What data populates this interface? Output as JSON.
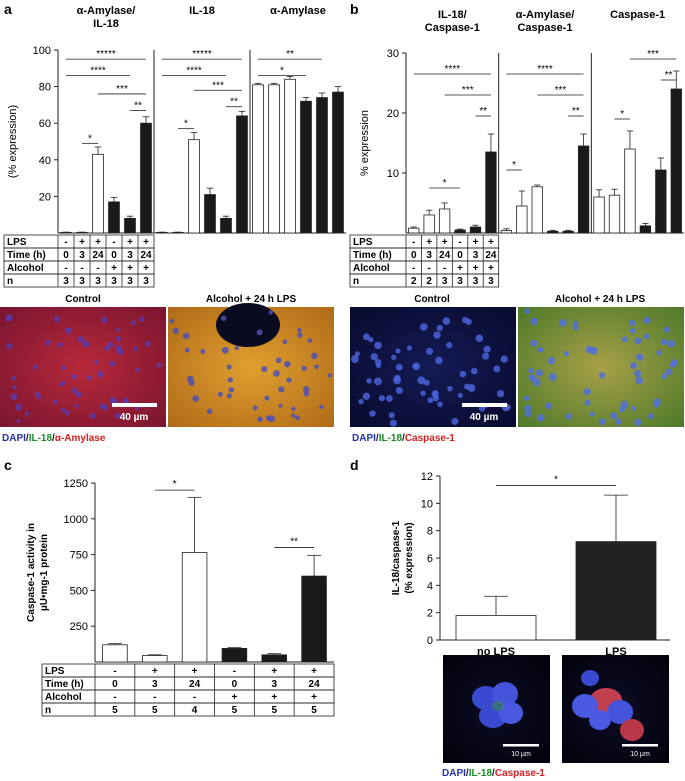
{
  "panels": [
    {
      "letter": "a"
    },
    {
      "letter": "b"
    },
    {
      "letter": "c"
    },
    {
      "letter": "d"
    }
  ],
  "chart_data": [
    {
      "panel": "a",
      "type": "bar",
      "ylabel": "(% expression)",
      "ylim": [
        0,
        100
      ],
      "yticks": [
        "100",
        "80",
        "60",
        "40",
        "20"
      ],
      "groups": [
        {
          "title": [
            "α-Amylase/",
            "IL-18"
          ],
          "values": [
            0.3,
            0.3,
            43,
            17,
            8,
            60
          ],
          "errors": [
            0.2,
            0.2,
            4,
            2.5,
            1.2,
            3.5
          ]
        },
        {
          "title": [
            "IL-18"
          ],
          "values": [
            0.3,
            0.3,
            51,
            21,
            8,
            64
          ],
          "errors": [
            0.2,
            0.2,
            4,
            3.5,
            1.2,
            2.5
          ]
        },
        {
          "title": [
            "α-Amylase"
          ],
          "values": [
            81,
            81,
            84,
            72,
            74,
            77
          ],
          "errors": [
            0.8,
            0.8,
            1.5,
            2,
            2.5,
            3
          ]
        }
      ],
      "bar_fill": [
        "white",
        "white",
        "white",
        "black",
        "black",
        "black"
      ],
      "table": {
        "rows": [
          {
            "label": "LPS",
            "values": [
              "-",
              "+",
              "+",
              "-",
              "+",
              "+"
            ]
          },
          {
            "label": "Time  (h)",
            "values": [
              "0",
              "3",
              "24",
              "0",
              "3",
              "24"
            ]
          },
          {
            "label": "Alcohol",
            "values": [
              "-",
              "-",
              "-",
              "+",
              "+",
              "+"
            ]
          },
          {
            "label": "n",
            "values": [
              "3",
              "3",
              "3",
              "3",
              "3",
              "3"
            ]
          }
        ]
      },
      "brackets": [
        {
          "group": 0,
          "from": 0,
          "to": 5,
          "y": 95,
          "label": "*****"
        },
        {
          "group": 0,
          "from": 0,
          "to": 4,
          "y": 86,
          "label": "****"
        },
        {
          "group": 0,
          "from": 2,
          "to": 5,
          "y": 76,
          "label": "***"
        },
        {
          "group": 0,
          "from": 4,
          "to": 5,
          "y": 67,
          "label": "**"
        },
        {
          "group": 0,
          "from": 1,
          "to": 2,
          "y": 49,
          "label": "*"
        },
        {
          "group": 1,
          "from": 0,
          "to": 5,
          "y": 95,
          "label": "*****"
        },
        {
          "group": 1,
          "from": 0,
          "to": 4,
          "y": 86,
          "label": "****"
        },
        {
          "group": 1,
          "from": 2,
          "to": 5,
          "y": 78,
          "label": "***"
        },
        {
          "group": 1,
          "from": 4,
          "to": 5,
          "y": 69,
          "label": "**"
        },
        {
          "group": 1,
          "from": 1,
          "to": 2,
          "y": 57,
          "label": "*"
        },
        {
          "group": 2,
          "from": 0,
          "to": 4,
          "y": 95,
          "label": "**"
        },
        {
          "group": 2,
          "from": 0,
          "to": 3,
          "y": 86,
          "label": "*"
        }
      ]
    },
    {
      "panel": "b",
      "type": "bar",
      "ylabel": "% expression",
      "ylim": [
        0,
        30
      ],
      "yticks": [
        "30",
        "20",
        "10"
      ],
      "groups": [
        {
          "title": [
            "IL-18/",
            "Caspase-1"
          ],
          "values": [
            0.8,
            3,
            4,
            0.5,
            1,
            13.5
          ],
          "errors": [
            0.2,
            0.8,
            1,
            0.15,
            0.3,
            3
          ]
        },
        {
          "title": [
            "α-Amylase/",
            "Caspase-1"
          ],
          "values": [
            0.4,
            4.5,
            7.7,
            0.3,
            0.3,
            14.5
          ],
          "errors": [
            0.3,
            2.5,
            0.3,
            0.15,
            0.15,
            2
          ]
        },
        {
          "title": [
            "Caspase-1"
          ],
          "values": [
            6,
            6.3,
            14,
            1.2,
            10.5,
            24
          ],
          "errors": [
            1.2,
            1,
            3,
            0.4,
            2,
            3
          ]
        }
      ],
      "bar_fill": [
        "white",
        "white",
        "white",
        "black",
        "black",
        "black"
      ],
      "table": {
        "rows": [
          {
            "label": "LPS",
            "values": [
              "-",
              "+",
              "+",
              "-",
              "+",
              "+"
            ]
          },
          {
            "label": "Time (h)",
            "values": [
              "0",
              "3",
              "24",
              "0",
              "3",
              "24"
            ]
          },
          {
            "label": "Alcohol",
            "values": [
              "-",
              "-",
              "-",
              "+",
              "+",
              "+"
            ]
          },
          {
            "label": "n",
            "values": [
              "2",
              "2",
              "3",
              "3",
              "3",
              "3"
            ]
          }
        ]
      },
      "brackets": [
        {
          "group": 0,
          "from": 0,
          "to": 5,
          "y": 26.5,
          "label": "****"
        },
        {
          "group": 0,
          "from": 2,
          "to": 5,
          "y": 23,
          "label": "***"
        },
        {
          "group": 0,
          "from": 4,
          "to": 5,
          "y": 19.5,
          "label": "**"
        },
        {
          "group": 0,
          "from": 1,
          "to": 3,
          "y": 7.5,
          "label": "*"
        },
        {
          "group": 1,
          "from": 0,
          "to": 5,
          "y": 26.5,
          "label": "****"
        },
        {
          "group": 1,
          "from": 2,
          "to": 5,
          "y": 23,
          "label": "***"
        },
        {
          "group": 1,
          "from": 4,
          "to": 5,
          "y": 19.5,
          "label": "**"
        },
        {
          "group": 1,
          "from": 0,
          "to": 1,
          "y": 10.5,
          "label": "*"
        },
        {
          "group": 2,
          "from": 2,
          "to": 5,
          "y": 29,
          "label": "***"
        },
        {
          "group": 2,
          "from": 4,
          "to": 5,
          "y": 25.5,
          "label": "**"
        },
        {
          "group": 2,
          "from": 1,
          "to": 2,
          "y": 19,
          "label": "*"
        }
      ]
    },
    {
      "panel": "c",
      "type": "bar",
      "ylabel": [
        "Caspase-1 activity in",
        "µU•mg-1 protein"
      ],
      "ylim": [
        0,
        1250
      ],
      "yticks": [
        "1250",
        "1000",
        "750",
        "500",
        "250"
      ],
      "values": [
        120,
        45,
        765,
        95,
        50,
        600
      ],
      "errors": [
        8,
        5,
        385,
        5,
        8,
        145
      ],
      "bar_fill": [
        "white",
        "white",
        "white",
        "black",
        "black",
        "black"
      ],
      "table": {
        "rows": [
          {
            "label": "LPS",
            "values": [
              "-",
              "+",
              "+",
              "-",
              "+",
              "+"
            ]
          },
          {
            "label": "Time (h)",
            "values": [
              "0",
              "3",
              "24",
              "0",
              "3",
              "24"
            ]
          },
          {
            "label": "Alcohol",
            "values": [
              "-",
              "-",
              "-",
              "+",
              "+",
              "+"
            ]
          },
          {
            "label": "n",
            "values": [
              "5",
              "5",
              "4",
              "5",
              "5",
              "5"
            ]
          }
        ]
      },
      "brackets": [
        {
          "from": 1,
          "to": 2,
          "y": 1200,
          "label": "*"
        },
        {
          "from": 4,
          "to": 5,
          "y": 800,
          "label": "**"
        }
      ]
    },
    {
      "panel": "d",
      "type": "bar",
      "ylabel": [
        "IL-18/caspase-1",
        "(% expression)"
      ],
      "ylim": [
        0,
        12
      ],
      "yticks": [
        "12",
        "10",
        "8",
        "6",
        "4",
        "2",
        "0"
      ],
      "categories": [
        "no LPS",
        "LPS"
      ],
      "values": [
        1.8,
        7.2
      ],
      "errors": [
        1.4,
        3.4
      ],
      "bar_fill": [
        "white",
        "#222222"
      ],
      "brackets": [
        {
          "from": 0,
          "to": 1,
          "y": 11.3,
          "label": "*"
        }
      ]
    }
  ],
  "micrographs": {
    "a": {
      "left_title": "Control",
      "right_title": "Alcohol + 24 h LPS",
      "scale_label": "40 µm",
      "legend": [
        {
          "text": "DAPI",
          "color": "#2233aa"
        },
        {
          "text": "/",
          "color": "#222222"
        },
        {
          "text": "IL-18",
          "color": "#1a8a2a"
        },
        {
          "text": "/",
          "color": "#222222"
        },
        {
          "text": "α-Amylase",
          "color": "#d42020"
        }
      ]
    },
    "b": {
      "left_title": "Control",
      "right_title": "Alcohol + 24 h LPS",
      "scale_label": "40 µm",
      "legend": [
        {
          "text": "DAPI",
          "color": "#2233aa"
        },
        {
          "text": "/",
          "color": "#222222"
        },
        {
          "text": "IL-18",
          "color": "#1a8a2a"
        },
        {
          "text": "/",
          "color": "#222222"
        },
        {
          "text": "Caspase-1",
          "color": "#d42020"
        }
      ]
    },
    "d": {
      "scale_label": "10 µm",
      "legend": [
        {
          "text": "DAPI",
          "color": "#2233aa"
        },
        {
          "text": "/",
          "color": "#222222"
        },
        {
          "text": "IL-18",
          "color": "#1a8a2a"
        },
        {
          "text": "/",
          "color": "#222222"
        },
        {
          "text": "Caspase-1",
          "color": "#d42020"
        }
      ]
    }
  },
  "colors": {
    "white_bar": "#ffffff",
    "black_bar": "#1a1a1a",
    "axis": "#222222"
  }
}
